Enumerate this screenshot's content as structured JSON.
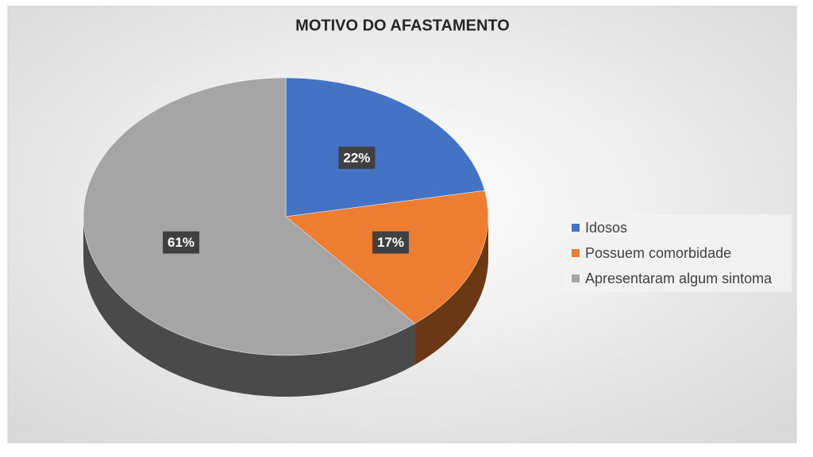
{
  "chart_data": {
    "type": "pie",
    "title": "MOTIVO DO AFASTAMENTO",
    "categories": [
      "Idosos",
      "Possuem comorbidade",
      "Apresentaram algum sintoma"
    ],
    "values": [
      22,
      17,
      61
    ],
    "value_labels": [
      "22%",
      "17%",
      "61%"
    ],
    "colors": [
      "#4472c4",
      "#ed7d31",
      "#a5a5a5"
    ],
    "legend": "right"
  }
}
